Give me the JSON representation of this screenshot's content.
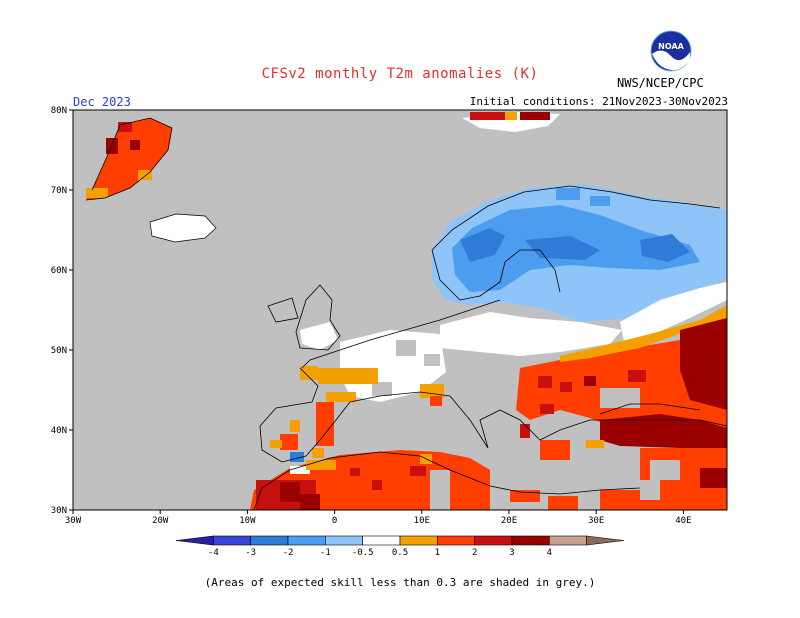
{
  "header": {
    "title": "CFSv2 monthly T2m anomalies (K)",
    "valid_month": "Dec 2023",
    "initial_conditions": "Initial conditions: 21Nov2023-30Nov2023",
    "agency": "NWS/NCEP/CPC",
    "logo_text": "NOAA"
  },
  "map": {
    "lat_labels": [
      "80N",
      "70N",
      "60N",
      "50N",
      "40N",
      "30N"
    ],
    "lon_labels": [
      "30W",
      "20W",
      "10W",
      "0",
      "10E",
      "20E",
      "30E",
      "40E"
    ],
    "lon_range": [
      -30,
      45
    ],
    "lat_range": [
      30,
      80
    ],
    "no_skill_color": "#c0c0c0",
    "near_normal_color": "#ffffff"
  },
  "legend": {
    "labels": [
      "-4",
      "-3",
      "-2",
      "-1",
      "-0.5",
      "0.5",
      "1",
      "2",
      "3",
      "4"
    ],
    "colors": [
      "#2b1fa5",
      "#3a44d6",
      "#2f7cd8",
      "#4c9cf0",
      "#8ec4f8",
      "#ffffff",
      "#f4a000",
      "#ff3e00",
      "#c81010",
      "#9a0000",
      "#c8a090",
      "#8a6a5a"
    ]
  },
  "footnote": "(Areas of expected skill less than 0.3 are shaded in grey.)"
}
